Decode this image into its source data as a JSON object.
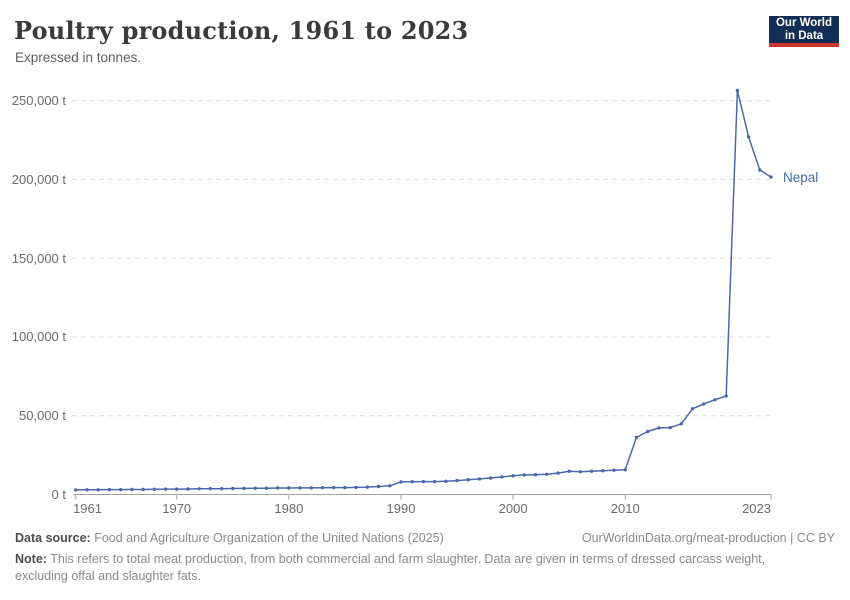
{
  "header": {
    "title": "Poultry production, 1961 to 2023",
    "subtitle": "Expressed in tonnes."
  },
  "logo": {
    "line1": "Our World",
    "line2": "in Data",
    "bg_color": "#132e54",
    "stripe_color": "#cf342b"
  },
  "chart_data": {
    "type": "line",
    "title": "Poultry production, 1961 to 2023",
    "unit": "tonnes",
    "xlim": [
      1961,
      2023
    ],
    "ylim": [
      0,
      250000
    ],
    "grid": "horizontal-dashed",
    "legend_position": "end-of-line-label",
    "x_ticks": [
      {
        "value": 1961,
        "label": "1961"
      },
      {
        "value": 1970,
        "label": "1970"
      },
      {
        "value": 1980,
        "label": "1980"
      },
      {
        "value": 1990,
        "label": "1990"
      },
      {
        "value": 2000,
        "label": "2000"
      },
      {
        "value": 2010,
        "label": "2010"
      },
      {
        "value": 2023,
        "label": "2023"
      }
    ],
    "y_ticks": [
      {
        "value": 0,
        "label": "0 t"
      },
      {
        "value": 50000,
        "label": "50,000 t"
      },
      {
        "value": 100000,
        "label": "100,000 t"
      },
      {
        "value": 150000,
        "label": "150,000 t"
      },
      {
        "value": 200000,
        "label": "200,000 t"
      },
      {
        "value": 250000,
        "label": "250,000 t"
      }
    ],
    "x": [
      1961,
      1962,
      1963,
      1964,
      1965,
      1966,
      1967,
      1968,
      1969,
      1970,
      1971,
      1972,
      1973,
      1974,
      1975,
      1976,
      1977,
      1978,
      1979,
      1980,
      1981,
      1982,
      1983,
      1984,
      1985,
      1986,
      1987,
      1988,
      1989,
      1990,
      1991,
      1992,
      1993,
      1994,
      1995,
      1996,
      1997,
      1998,
      1999,
      2000,
      2001,
      2002,
      2003,
      2004,
      2005,
      2006,
      2007,
      2008,
      2009,
      2010,
      2011,
      2012,
      2013,
      2014,
      2015,
      2016,
      2017,
      2018,
      2019,
      2020,
      2021,
      2022,
      2023
    ],
    "series": [
      {
        "name": "Nepal",
        "color": "#4a69ad",
        "values": [
          2900,
          3000,
          3000,
          3100,
          3100,
          3200,
          3200,
          3300,
          3400,
          3400,
          3500,
          3600,
          3700,
          3700,
          3800,
          3900,
          4000,
          4000,
          4100,
          4100,
          4200,
          4200,
          4300,
          4400,
          4400,
          4500,
          4700,
          5100,
          5500,
          8000,
          8100,
          8200,
          8200,
          8400,
          8800,
          9400,
          9900,
          10500,
          11200,
          11900,
          12400,
          12600,
          12800,
          13600,
          14700,
          14400,
          14800,
          15100,
          15400,
          15700,
          36200,
          40000,
          42300,
          42500,
          44900,
          54400,
          57500,
          60100,
          62600,
          256500,
          227000,
          206000,
          201500
        ]
      }
    ],
    "gridline_color": "#dcdcdc",
    "axis_color": "#a3a3a3"
  },
  "footer": {
    "datasource_label": "Data source:",
    "datasource_value": "Food and Agriculture Organization of the United Nations (2025)",
    "url_text": "OurWorldinData.org/meat-production | CC BY",
    "note_label": "Note:",
    "note_text": "This refers to total meat production, from both commercial and farm slaughter. Data are given in terms of dressed carcass weight, excluding offal and slaughter fats."
  }
}
